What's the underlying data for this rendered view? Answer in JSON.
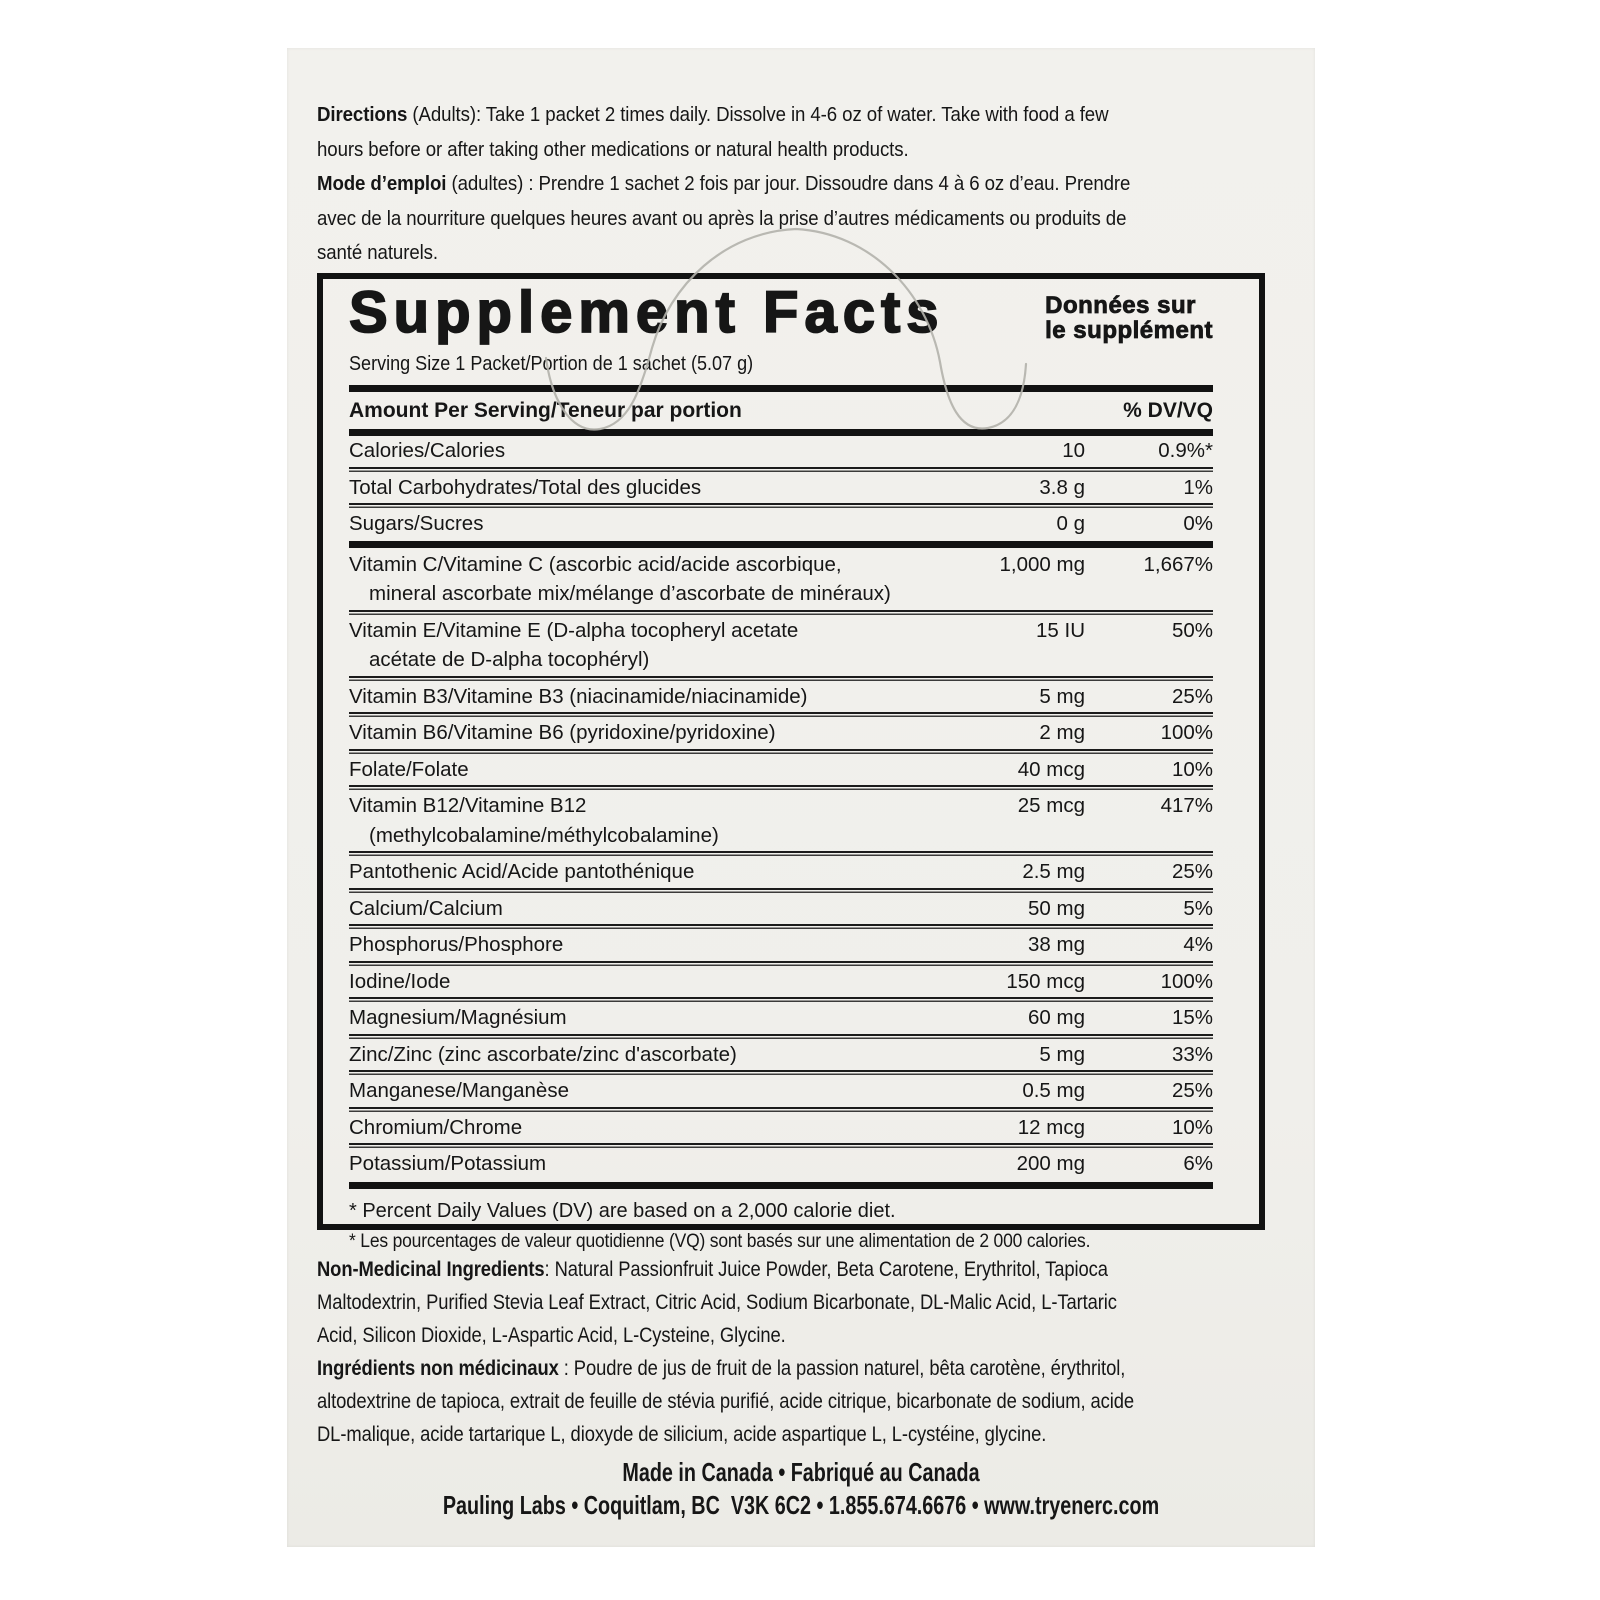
{
  "colors": {
    "page_bg": "#ffffff",
    "panel_bg": "#f1f0ec",
    "ink": "#161616",
    "rule": "#1b1b1b",
    "thread_line": "#b3b1ab"
  },
  "directions": {
    "en": {
      "lead": "Directions",
      "rest": " (Adults): Take 1 packet 2 times daily. Dissolve in 4-6 oz of water. Take with food a few\nhours before or after taking other medications or natural health products."
    },
    "fr": {
      "lead": "Mode d’emploi",
      "rest": " (adultes) : Prendre 1 sachet 2 fois par jour. Dissoudre dans 4 à 6 oz d’eau. Prendre\navec de la nourriture quelques heures avant ou après la prise d’autres médicaments ou produits de\nsanté naturels."
    }
  },
  "facts": {
    "title_en": "Supplement Facts",
    "title_fr_line1": "Données sur",
    "title_fr_line2": "le supplément",
    "serving": "Serving Size 1 Packet/Portion de 1 sachet (5.07 g)",
    "header_left": "Amount Per Serving/Teneur par portion",
    "header_right": "% DV/VQ",
    "rows": [
      {
        "name": "Calories/Calories",
        "amount": "10",
        "dv": "0.9%*",
        "rule": "none"
      },
      {
        "name": "Total Carbohydrates/Total des glucides",
        "amount": "3.8 g",
        "dv": "1%",
        "rule": "thin"
      },
      {
        "name": "Sugars/Sucres",
        "amount": "0 g",
        "dv": "0%",
        "rule": "thin"
      },
      {
        "name": "Vitamin C/Vitamine C (ascorbic acid/acide ascorbique,",
        "name2": "mineral ascorbate mix/mélange d’ascorbate de minéraux)",
        "amount": "1,000 mg",
        "dv": "1,667%",
        "rule": "thick"
      },
      {
        "name": "Vitamin E/Vitamine E (D-alpha tocopheryl acetate",
        "name2": "acétate de D-alpha tocophéryl)",
        "amount": "15 IU",
        "dv": "50%",
        "rule": "thin"
      },
      {
        "name": "Vitamin B3/Vitamine B3 (niacinamide/niacinamide)",
        "amount": "5 mg",
        "dv": "25%",
        "rule": "thin"
      },
      {
        "name": "Vitamin B6/Vitamine B6 (pyridoxine/pyridoxine)",
        "amount": "2 mg",
        "dv": "100%",
        "rule": "thin"
      },
      {
        "name": "Folate/Folate",
        "amount": "40 mcg",
        "dv": "10%",
        "rule": "thin"
      },
      {
        "name": "Vitamin B12/Vitamine B12",
        "name2": "(methylcobalamine/méthylcobalamine)",
        "amount": "25 mcg",
        "dv": "417%",
        "rule": "thin"
      },
      {
        "name": "Pantothenic Acid/Acide pantothénique",
        "amount": "2.5 mg",
        "dv": "25%",
        "rule": "thin"
      },
      {
        "name": "Calcium/Calcium",
        "amount": "50 mg",
        "dv": "5%",
        "rule": "thin"
      },
      {
        "name": "Phosphorus/Phosphore",
        "amount": "38 mg",
        "dv": "4%",
        "rule": "thin"
      },
      {
        "name": "Iodine/Iode",
        "amount": "150 mcg",
        "dv": "100%",
        "rule": "thin"
      },
      {
        "name": "Magnesium/Magnésium",
        "amount": "60 mg",
        "dv": "15%",
        "rule": "thin"
      },
      {
        "name": "Zinc/Zinc (zinc ascorbate/zinc d'ascorbate)",
        "amount": "5 mg",
        "dv": "33%",
        "rule": "thin"
      },
      {
        "name": "Manganese/Manganèse",
        "amount": "0.5 mg",
        "dv": "25%",
        "rule": "thin"
      },
      {
        "name": "Chromium/Chrome",
        "amount": "12 mcg",
        "dv": "10%",
        "rule": "thin"
      },
      {
        "name": "Potassium/Potassium",
        "amount": "200 mg",
        "dv": "6%",
        "rule": "thin"
      }
    ],
    "footnote_en": "* Percent Daily Values (DV) are based on a 2,000 calorie diet.",
    "footnote_fr": "* Les pourcentages de valeur quotidienne (VQ) sont basés sur une alimentation de 2 000 calories."
  },
  "ingredients": {
    "en": {
      "lead": "Non-Medicinal Ingredients",
      "rest": ": Natural Passionfruit Juice Powder, Beta Carotene, Erythritol, Tapioca\nMaltodextrin, Purified Stevia Leaf Extract, Citric Acid, Sodium Bicarbonate, DL-Malic Acid, L-Tartaric\nAcid, Silicon Dioxide, L-Aspartic Acid, L-Cysteine, Glycine."
    },
    "fr": {
      "lead": "Ingrédients non médicinaux",
      "rest": " : Poudre de jus de fruit de la passion naturel, bêta carotène, érythritol,\naltodextrine de tapioca, extrait de feuille de stévia purifié, acide citrique, bicarbonate de sodium, acide\nDL-malique, acide tartarique L, dioxyde de silicium, acide aspartique L, L-cystéine, glycine."
    }
  },
  "footer": {
    "line1": "Made in Canada • Fabriqué au Canada",
    "line2": "Pauling Labs • Coquitlam, BC  V3K 6C2 • 1.855.674.6676 • www.tryenerc.com"
  }
}
